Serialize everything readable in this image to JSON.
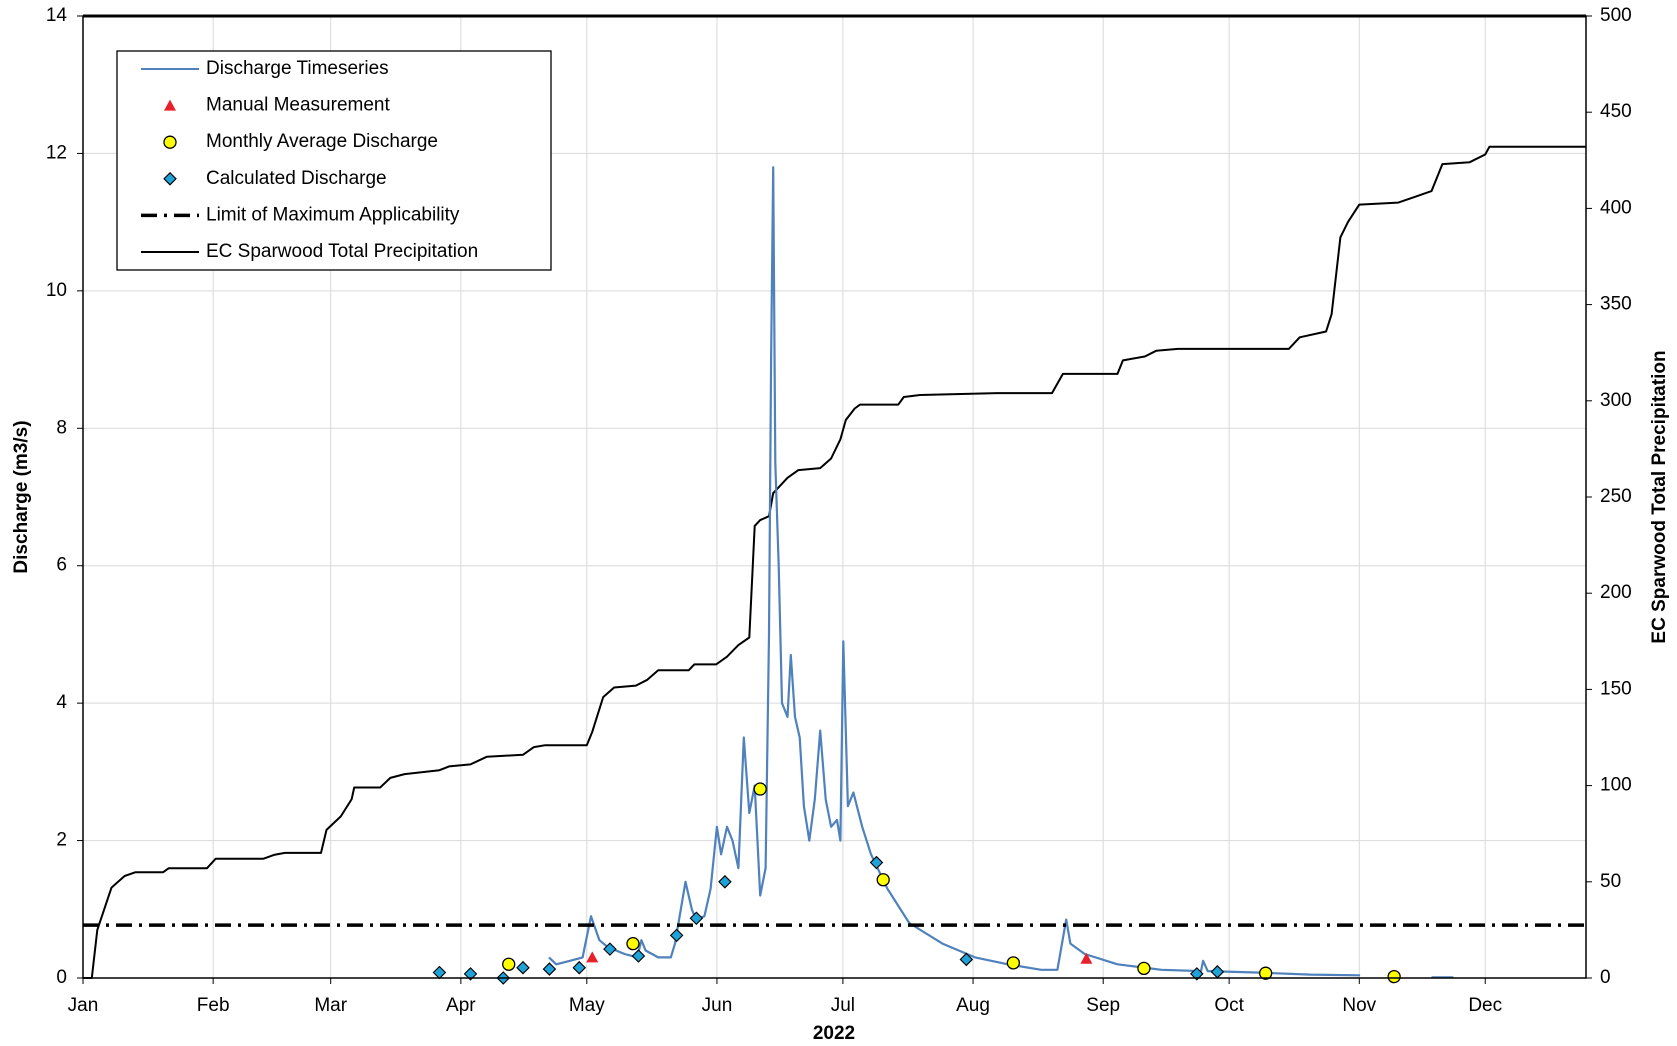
{
  "chart_data": {
    "type": "line",
    "x_label": "2022",
    "y_label": "Discharge (m3/s)",
    "y2_label": "EC Sparwood Total Precipitation",
    "xlim": [
      0,
      358
    ],
    "xticks": [
      {
        "value": 0,
        "label": "Jan"
      },
      {
        "value": 31,
        "label": "Feb"
      },
      {
        "value": 59,
        "label": "Mar"
      },
      {
        "value": 90,
        "label": "Apr"
      },
      {
        "value": 120,
        "label": "May"
      },
      {
        "value": 151,
        "label": "Jun"
      },
      {
        "value": 181,
        "label": "Jul"
      },
      {
        "value": 212,
        "label": "Aug"
      },
      {
        "value": 243,
        "label": "Sep"
      },
      {
        "value": 273,
        "label": "Oct"
      },
      {
        "value": 304,
        "label": "Nov"
      },
      {
        "value": 334,
        "label": "Dec"
      }
    ],
    "ylim": [
      0,
      14
    ],
    "yticks": [
      0,
      2,
      4,
      6,
      8,
      10,
      12,
      14
    ],
    "y2lim": [
      0,
      500
    ],
    "y2ticks": [
      0,
      50,
      100,
      150,
      200,
      250,
      300,
      350,
      400,
      450,
      500
    ],
    "grid": true,
    "legend": "upper left",
    "series": [
      {
        "name": "Discharge Timeseries",
        "color": "#4f81bd",
        "style": "line",
        "x": [
          111,
          112.7,
          116,
          119,
          121,
          123,
          125,
          129,
          132,
          133,
          134,
          137,
          140,
          141,
          143.5,
          145,
          146,
          148,
          149.5,
          151,
          152,
          153.4,
          154.7,
          156.1,
          157.4,
          158.7,
          160,
          161.3,
          162.6,
          163.4,
          163.9,
          164.4,
          164.9,
          165.7,
          166.5,
          167.8,
          168.6,
          169.6,
          170.7,
          171.7,
          173,
          174.3,
          175.6,
          176.9,
          178.2,
          179.6,
          180.4,
          181.1,
          182.2,
          183.5,
          185.6,
          187.7,
          191.6,
          196.8,
          204.7,
          212.5,
          220.3,
          228.2,
          232.1,
          234.2,
          235.2,
          238.6,
          246.4,
          256.9,
          266.3,
          266.8,
          267.9,
          279.4,
          292.4,
          304.2,
          310,
          321.2,
          326.4
        ],
        "values": [
          0.3,
          0.2,
          0.25,
          0.3,
          0.9,
          0.55,
          0.45,
          0.35,
          0.3,
          0.55,
          0.4,
          0.3,
          0.3,
          0.5,
          1.4,
          1.0,
          0.85,
          0.9,
          1.3,
          2.2,
          1.8,
          2.2,
          2.0,
          1.6,
          3.5,
          2.4,
          2.8,
          1.2,
          1.6,
          5,
          9,
          11.8,
          7.5,
          6,
          4,
          3.8,
          4.7,
          3.8,
          3.5,
          2.5,
          2.0,
          2.6,
          3.6,
          2.6,
          2.2,
          2.3,
          2.0,
          4.9,
          2.5,
          2.7,
          2.2,
          1.8,
          1.3,
          0.8,
          0.5,
          0.3,
          0.2,
          0.12,
          0.12,
          0.85,
          0.5,
          0.35,
          0.2,
          0.12,
          0.1,
          0.25,
          0.1,
          0.08,
          0.05,
          0.04,
          null,
          0.01,
          0.01
        ]
      },
      {
        "name": "Manual Measurement",
        "color": "#e8202a",
        "style": "triangle",
        "x": [
          121.3,
          239
        ],
        "values": [
          0.3,
          0.28
        ]
      },
      {
        "name": "Monthly Average Discharge",
        "color": "#ffff00",
        "style": "circle",
        "x": [
          101.4,
          131,
          161.3,
          190.6,
          221.6,
          252.7,
          281.7,
          312.3
        ],
        "values": [
          0.2,
          0.5,
          2.75,
          1.43,
          0.22,
          0.14,
          0.07,
          0.02
        ]
      },
      {
        "name": "Calculated Discharge",
        "color": "#1fa2d8",
        "style": "diamond",
        "x": [
          84.9,
          92.3,
          100.1,
          104.8,
          111.1,
          118.2,
          125.5,
          132.3,
          141.4,
          146.1,
          152.9,
          189,
          210.4,
          265.3,
          270.2
        ],
        "values": [
          0.08,
          0.06,
          0,
          0.15,
          0.13,
          0.15,
          0.42,
          0.32,
          0.62,
          0.87,
          1.4,
          1.68,
          0.27,
          0.06,
          0.09
        ]
      },
      {
        "name": "Limit of Maximum Applicability",
        "color": "#000000",
        "style": "hline",
        "values": [
          0.77
        ]
      },
      {
        "name": "EC Sparwood Total Precipitation",
        "color": "#000000",
        "style": "line",
        "axis": "y2",
        "x": [
          0,
          2.1,
          3.4,
          6.8,
          9.9,
          12.5,
          19.1,
          20.4,
          29.5,
          31.6,
          43,
          45.5,
          48.1,
          56.7,
          58,
          61.4,
          64,
          64.6,
          70.8,
          73.2,
          76.6,
          84.9,
          87.2,
          92.3,
          96.2,
          104.8,
          107.4,
          110.1,
          120,
          121.3,
          123.9,
          126.5,
          131.7,
          134.4,
          137,
          144.3,
          145.6,
          150.8,
          153.4,
          156.1,
          158.7,
          160,
          161.3,
          163.4,
          164.4,
          167.8,
          170.4,
          175.6,
          178.2,
          180.4,
          181.7,
          183.8,
          185.1,
          194.2,
          195.5,
          199.4,
          217.7,
          230.8,
          233.4,
          246.4,
          247.7,
          252.9,
          255.6,
          260.8,
          287.2,
          289.8,
          296.1,
          297.4,
          299.5,
          301.3,
          304,
          313.3,
          317.2,
          321.2,
          323.8,
          330.3,
          334,
          335,
          358
        ],
        "values": [
          0,
          0,
          25,
          47,
          53,
          55,
          55,
          57,
          57,
          62,
          62,
          64,
          65,
          65,
          77,
          84,
          93,
          99,
          99,
          104,
          106,
          108,
          110,
          111,
          115,
          116,
          120,
          121,
          121,
          128,
          146,
          151,
          152,
          155,
          160,
          160,
          163,
          163,
          167,
          173,
          177,
          235,
          238,
          240,
          252,
          260,
          264,
          265,
          270,
          280,
          290,
          296,
          298,
          298,
          302,
          303,
          304,
          304,
          314,
          314,
          321,
          323,
          326,
          327,
          327,
          333,
          336,
          345,
          385,
          393,
          402,
          403,
          406,
          409,
          423,
          424,
          428,
          432,
          432
        ]
      }
    ]
  }
}
